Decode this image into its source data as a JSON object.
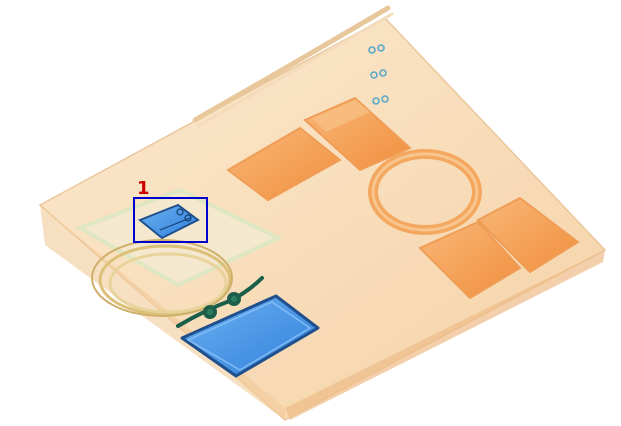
{
  "image": {
    "kind": "x-ray baggage scan",
    "background_color": "#ffffff"
  },
  "colors": {
    "organic_orange": "#f6a058",
    "organic_light": "#f7dcb8",
    "inorganic_blue": "#3f8fe6",
    "metal_dark": "#1b5e4a",
    "annotation_box": "#0000cc",
    "annotation_label": "#cc0000"
  },
  "annotation": {
    "label": "1",
    "box_color": "#0000cc",
    "label_color": "#cc0000"
  },
  "icons": {
    "detected_item": "tablet-device-icon",
    "pouch": "zip-pouch-icon",
    "cable": "coiled-cable-icon",
    "ring": "ring-object-icon"
  }
}
